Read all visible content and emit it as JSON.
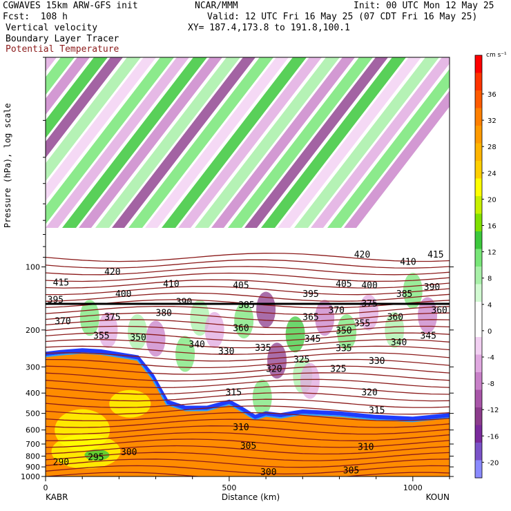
{
  "header": {
    "model": "CGWAVES 15km ARW-GFS init",
    "org": "NCAR/MMM",
    "init": "Init: 00 UTC Mon 12 May 25",
    "fcst": "Fcst:  108 h",
    "valid": "Valid: 12 UTC Fri 16 May 25 (07 CDT Fri 16 May 25)",
    "field1": "Vertical velocity",
    "xy": "XY= 187.4,173.8 to 191.8,100.1",
    "field2": "Boundary Layer Tracer",
    "field3": "Potential Temperature"
  },
  "colors": {
    "theta": "#8b1a1a",
    "tracer_fill": "#ff8c00",
    "tracer_edge": "#1e3cff"
  },
  "chart_data": {
    "type": "heatmap",
    "xlabel": "Distance (km)",
    "ylabel": "Pressure (hPa), log scale",
    "xlim": [
      0,
      1100
    ],
    "ylim": [
      1000,
      10
    ],
    "yscale": "log",
    "x_ticks": [
      "0",
      "500",
      "1000"
    ],
    "y_ticks": [
      "100",
      "200",
      "300",
      "400",
      "500",
      "600",
      "700",
      "800",
      "900",
      "1000"
    ],
    "left_station": "KABR",
    "right_station": "KOUN",
    "colorbar": {
      "unit": "cm s⁻¹",
      "labels": [
        "36",
        "32",
        "28",
        "24",
        "20",
        "16",
        "12",
        "8",
        "4",
        "0",
        "-4",
        "-8",
        "-12",
        "-16",
        "-20"
      ],
      "colors": [
        "#ff0000",
        "#ff3300",
        "#ff5a00",
        "#ff7f00",
        "#ff9a00",
        "#ffb400",
        "#ffcf00",
        "#ffff00",
        "#c8f000",
        "#7fe000",
        "#3cc83c",
        "#78e678",
        "#a8f0a8",
        "#d2fad2",
        "#ffffff",
        "#ffffff",
        "#f2d0f2",
        "#e0a8e0",
        "#c880c8",
        "#a855a8",
        "#8c3c8c",
        "#7a2a9c",
        "#7a52c8",
        "#8a8aff"
      ]
    },
    "theta_labels": [
      {
        "v": "415",
        "x": 20,
        "p": 118
      },
      {
        "v": "420",
        "x": 160,
        "p": 105
      },
      {
        "v": "410",
        "x": 320,
        "p": 120
      },
      {
        "v": "405",
        "x": 510,
        "p": 122
      },
      {
        "v": "420",
        "x": 840,
        "p": 87
      },
      {
        "v": "410",
        "x": 965,
        "p": 94
      },
      {
        "v": "415",
        "x": 1040,
        "p": 87
      },
      {
        "v": "405",
        "x": 790,
        "p": 120
      },
      {
        "v": "400",
        "x": 860,
        "p": 122
      },
      {
        "v": "390",
        "x": 1030,
        "p": 124
      },
      {
        "v": "400",
        "x": 190,
        "p": 134
      },
      {
        "v": "395",
        "x": 700,
        "p": 134
      },
      {
        "v": "385",
        "x": 955,
        "p": 134
      },
      {
        "v": "395",
        "x": 5,
        "p": 143
      },
      {
        "v": "390",
        "x": 355,
        "p": 146
      },
      {
        "v": "385",
        "x": 525,
        "p": 151
      },
      {
        "v": "375",
        "x": 860,
        "p": 149
      },
      {
        "v": "370",
        "x": 770,
        "p": 160
      },
      {
        "v": "380",
        "x": 300,
        "p": 165
      },
      {
        "v": "360",
        "x": 1050,
        "p": 160
      },
      {
        "v": "375",
        "x": 160,
        "p": 173
      },
      {
        "v": "370",
        "x": 25,
        "p": 181
      },
      {
        "v": "365",
        "x": 700,
        "p": 173
      },
      {
        "v": "360",
        "x": 930,
        "p": 173
      },
      {
        "v": "355",
        "x": 840,
        "p": 185
      },
      {
        "v": "360",
        "x": 510,
        "p": 195
      },
      {
        "v": "350",
        "x": 790,
        "p": 200
      },
      {
        "v": "355",
        "x": 130,
        "p": 212
      },
      {
        "v": "350",
        "x": 230,
        "p": 216
      },
      {
        "v": "345",
        "x": 705,
        "p": 219
      },
      {
        "v": "345",
        "x": 1020,
        "p": 212
      },
      {
        "v": "340",
        "x": 390,
        "p": 233
      },
      {
        "v": "340",
        "x": 940,
        "p": 228
      },
      {
        "v": "335",
        "x": 570,
        "p": 242
      },
      {
        "v": "335",
        "x": 790,
        "p": 243
      },
      {
        "v": "330",
        "x": 470,
        "p": 251
      },
      {
        "v": "325",
        "x": 675,
        "p": 275
      },
      {
        "v": "330",
        "x": 880,
        "p": 280
      },
      {
        "v": "320",
        "x": 600,
        "p": 305
      },
      {
        "v": "325",
        "x": 775,
        "p": 305
      },
      {
        "v": "320",
        "x": 860,
        "p": 395
      },
      {
        "v": "315",
        "x": 490,
        "p": 395
      },
      {
        "v": "315",
        "x": 880,
        "p": 480
      },
      {
        "v": "310",
        "x": 510,
        "p": 580
      },
      {
        "v": "310",
        "x": 850,
        "p": 720
      },
      {
        "v": "300",
        "x": 205,
        "p": 760
      },
      {
        "v": "305",
        "x": 530,
        "p": 710
      },
      {
        "v": "295",
        "x": 115,
        "p": 805
      },
      {
        "v": "290",
        "x": 20,
        "p": 850
      },
      {
        "v": "300",
        "x": 585,
        "p": 950
      },
      {
        "v": "305",
        "x": 810,
        "p": 930
      }
    ]
  }
}
